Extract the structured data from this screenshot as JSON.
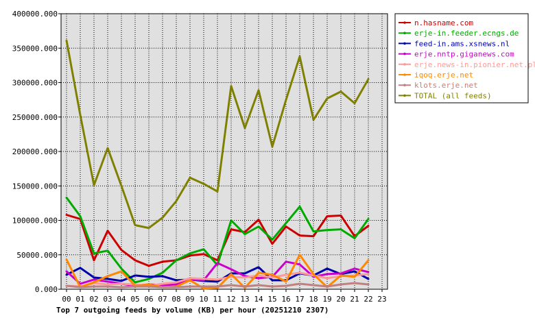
{
  "chart_data": {
    "type": "line",
    "title": "Top 7 outgoing feeds by volume (KB) per hour (20251210 2307)",
    "x_tick_labels": [
      "00",
      "01",
      "02",
      "03",
      "04",
      "05",
      "06",
      "07",
      "08",
      "09",
      "10",
      "11",
      "12",
      "13",
      "14",
      "15",
      "16",
      "17",
      "18",
      "19",
      "20",
      "21",
      "22",
      "23"
    ],
    "x": [
      0,
      1,
      2,
      3,
      4,
      5,
      6,
      7,
      8,
      9,
      10,
      11,
      12,
      13,
      14,
      15,
      16,
      17,
      18,
      19,
      20,
      21,
      22
    ],
    "y_tick_labels": [
      "0.000",
      "50000.000",
      "100000.000",
      "150000.000",
      "200000.000",
      "250000.000",
      "300000.000",
      "350000.000",
      "400000.000"
    ],
    "y_ticks": [
      0,
      50000,
      100000,
      150000,
      200000,
      250000,
      300000,
      350000,
      400000
    ],
    "xlim": [
      0,
      23
    ],
    "ylim": [
      0,
      400000
    ],
    "grid": true,
    "legend_position": "top-right",
    "colors": {
      "plot_background": "#e0e0e0",
      "grid": "#000000"
    },
    "series": [
      {
        "name": "n.hasname.com",
        "color": "#cc0000",
        "values": [
          108000,
          102000,
          42000,
          85000,
          57000,
          42000,
          34000,
          40000,
          42000,
          49000,
          51000,
          42000,
          87000,
          83000,
          101000,
          66000,
          91000,
          78000,
          77000,
          106000,
          107000,
          77000,
          92000
        ]
      },
      {
        "name": "erje-in.feeder.ecngs.de",
        "color": "#00aa00",
        "values": [
          133000,
          106000,
          52000,
          56000,
          30000,
          10000,
          15000,
          24000,
          42000,
          52000,
          58000,
          35000,
          100000,
          80000,
          91000,
          72000,
          96000,
          120000,
          84000,
          86000,
          87000,
          74000,
          102000
        ]
      },
      {
        "name": "feed-in.ams.xsnews.nl",
        "color": "#0000aa",
        "values": [
          21000,
          31000,
          17000,
          15000,
          12000,
          20000,
          18000,
          19000,
          13000,
          14000,
          12000,
          11000,
          23000,
          23000,
          32000,
          13000,
          13000,
          23000,
          20000,
          30000,
          22000,
          26000,
          15000
        ]
      },
      {
        "name": "erje.nntp.giganews.com",
        "color": "#cc00cc",
        "values": [
          26000,
          8000,
          14000,
          11000,
          8000,
          5000,
          7000,
          6000,
          7000,
          14000,
          13000,
          38000,
          29000,
          19000,
          16000,
          18000,
          40000,
          36000,
          18000,
          22000,
          23000,
          30000,
          25000
        ]
      },
      {
        "name": "erje.news-in.pionier.net.pl",
        "color": "#ff9999",
        "values": [
          5000,
          4000,
          9000,
          7000,
          8000,
          7000,
          5000,
          8000,
          10000,
          16000,
          15000,
          14000,
          18000,
          17000,
          20000,
          17000,
          21000,
          24000,
          20000,
          16000,
          19000,
          20000,
          22000
        ]
      },
      {
        "name": "iqoq.erje.net",
        "color": "#ff8800",
        "values": [
          43000,
          3000,
          10000,
          19000,
          26000,
          5000,
          7000,
          3000,
          4000,
          13000,
          1000,
          2000,
          22000,
          2000,
          24000,
          21000,
          11000,
          50000,
          22000,
          3000,
          20000,
          18000,
          42000
        ]
      },
      {
        "name": "klots.erje.net",
        "color": "#c08080",
        "values": [
          5000,
          3000,
          4000,
          4000,
          3000,
          4000,
          4000,
          3000,
          3000,
          4000,
          4000,
          4000,
          6000,
          4000,
          6000,
          4000,
          5000,
          8000,
          6000,
          4000,
          7000,
          9000,
          7000
        ]
      },
      {
        "name": "TOTAL (all feeds)",
        "color": "#808000",
        "values": [
          361000,
          253000,
          151000,
          205000,
          150000,
          93000,
          89000,
          104000,
          128000,
          162000,
          153000,
          142000,
          295000,
          234000,
          289000,
          207000,
          275000,
          338000,
          246000,
          277000,
          287000,
          270000,
          305000
        ]
      }
    ]
  }
}
